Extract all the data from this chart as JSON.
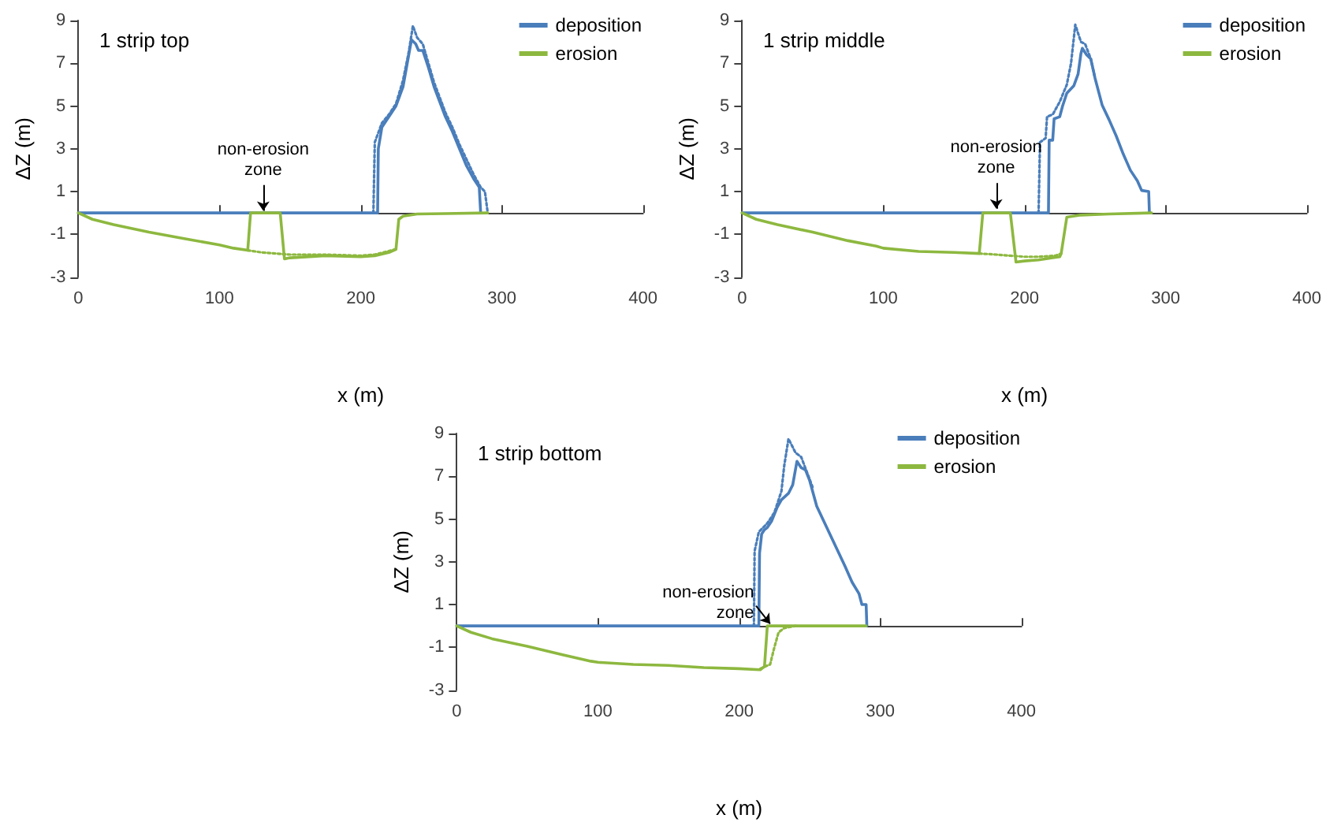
{
  "chart_data": [
    {
      "type": "line",
      "title": "1 strip top",
      "xlabel": "x (m)",
      "ylabel": "ΔZ (m)",
      "xlim": [
        0,
        400
      ],
      "xticks": [
        0,
        100,
        200,
        300,
        400
      ],
      "ylim": [
        -3,
        9
      ],
      "yticks": [
        -3,
        -1,
        1,
        3,
        5,
        7,
        9
      ],
      "grid": false,
      "legend": "top right",
      "marker": "none",
      "annotations": [
        {
          "text": "non-erosion zone",
          "x": 131,
          "y": 0.1
        }
      ],
      "series": [
        {
          "name": "deposition",
          "color": "#4a7ebb",
          "line_style": "solid",
          "x": [
            0,
            212,
            212.5,
            215,
            220,
            225,
            230,
            233,
            236,
            239,
            241,
            244,
            248,
            252,
            256,
            260,
            265,
            270,
            275,
            280,
            284,
            285
          ],
          "values": [
            0,
            0,
            3.0,
            4.0,
            4.5,
            5.0,
            5.9,
            7.0,
            8.1,
            7.9,
            7.6,
            7.6,
            6.8,
            5.9,
            5.2,
            4.5,
            3.8,
            3.0,
            2.2,
            1.6,
            1.2,
            0
          ]
        },
        {
          "color": "#4a7ebb",
          "line_style": "dotted",
          "x": [
            209,
            210,
            215,
            220,
            225,
            230,
            234,
            237,
            240,
            244,
            248,
            252,
            256,
            260,
            265,
            270,
            275,
            280,
            285,
            288,
            290
          ],
          "values": [
            0,
            3.3,
            4.2,
            4.6,
            5.1,
            6.2,
            7.5,
            8.75,
            8.2,
            7.9,
            7.0,
            6.1,
            5.4,
            4.7,
            4.0,
            3.2,
            2.5,
            1.8,
            1.2,
            1.0,
            0
          ]
        },
        {
          "name": "erosion",
          "color": "#8db83f",
          "line_style": "solid",
          "x": [
            0,
            10,
            25,
            50,
            75,
            100,
            110,
            120,
            122,
            143,
            146,
            150,
            175,
            200,
            210,
            220,
            225,
            227,
            230,
            240,
            260,
            290
          ],
          "values": [
            0,
            -0.3,
            -0.55,
            -0.9,
            -1.2,
            -1.5,
            -1.65,
            -1.75,
            0,
            0,
            -2.15,
            -2.1,
            -2.0,
            -2.05,
            -2.0,
            -1.85,
            -1.7,
            -0.3,
            -0.15,
            -0.05,
            -0.03,
            0
          ]
        },
        {
          "color": "#8db83f",
          "line_style": "dotted",
          "x": [
            120,
            130,
            140,
            150,
            175,
            200,
            210,
            225
          ],
          "values": [
            -1.75,
            -1.85,
            -1.9,
            -1.95,
            -1.95,
            -2.0,
            -1.95,
            -1.7
          ]
        }
      ]
    },
    {
      "type": "line",
      "title": "1 strip middle",
      "xlabel": "x (m)",
      "ylabel": "ΔZ (m)",
      "xlim": [
        0,
        400
      ],
      "xticks": [
        0,
        100,
        200,
        300,
        400
      ],
      "ylim": [
        -3,
        9
      ],
      "yticks": [
        -3,
        -1,
        1,
        3,
        5,
        7,
        9
      ],
      "grid": false,
      "legend": "top right",
      "marker": "none",
      "annotations": [
        {
          "text": "non-erosion zone",
          "x": 180,
          "y": 0.2
        }
      ],
      "series": [
        {
          "name": "deposition",
          "color": "#4a7ebb",
          "line_style": "solid",
          "x": [
            0,
            217,
            217.5,
            220,
            221,
            225,
            227,
            230,
            235,
            238,
            240,
            241,
            244,
            247,
            250,
            255,
            260,
            265,
            270,
            275,
            280,
            283,
            288,
            288.5
          ],
          "values": [
            0,
            0,
            3.4,
            3.4,
            4.4,
            4.5,
            5.0,
            5.6,
            5.95,
            6.5,
            7.45,
            7.7,
            7.4,
            7.2,
            6.3,
            5.05,
            4.35,
            3.6,
            2.75,
            2.0,
            1.5,
            1.05,
            1.0,
            0
          ]
        },
        {
          "color": "#4a7ebb",
          "line_style": "dotted",
          "x": [
            210,
            211,
            215,
            216,
            220,
            225,
            230,
            233,
            236,
            240,
            243,
            247,
            250
          ],
          "values": [
            0,
            3.3,
            3.5,
            4.5,
            4.6,
            5.2,
            6.0,
            7.0,
            8.8,
            8.0,
            7.9,
            7.2,
            6.3
          ]
        },
        {
          "name": "erosion",
          "color": "#8db83f",
          "line_style": "solid",
          "x": [
            0,
            10,
            25,
            50,
            75,
            95,
            100,
            125,
            150,
            168,
            170.5,
            190,
            194,
            200,
            210,
            220,
            225,
            226,
            230,
            240,
            260,
            290
          ],
          "values": [
            0,
            -0.3,
            -0.55,
            -0.9,
            -1.3,
            -1.55,
            -1.65,
            -1.8,
            -1.85,
            -1.9,
            0,
            0,
            -2.3,
            -2.25,
            -2.2,
            -2.1,
            -2.05,
            -1.9,
            -0.2,
            -0.1,
            -0.05,
            0
          ]
        },
        {
          "color": "#8db83f",
          "line_style": "dotted",
          "x": [
            168,
            180,
            190,
            200,
            210,
            222,
            226
          ],
          "values": [
            -1.9,
            -1.95,
            -2.0,
            -2.05,
            -2.05,
            -2.0,
            -1.9
          ]
        }
      ]
    },
    {
      "type": "line",
      "title": "1 strip bottom",
      "xlabel": "x (m)",
      "ylabel": "ΔZ (m)",
      "xlim": [
        0,
        400
      ],
      "xticks": [
        0,
        100,
        200,
        300,
        400
      ],
      "ylim": [
        -3,
        9
      ],
      "yticks": [
        -3,
        -1,
        1,
        3,
        5,
        7,
        9
      ],
      "grid": false,
      "legend": "top right",
      "marker": "none",
      "annotations": [
        {
          "text": "non-erosion zone",
          "x": 222,
          "y": 0.1
        }
      ],
      "series": [
        {
          "name": "deposition",
          "color": "#4a7ebb",
          "line_style": "solid",
          "x": [
            0,
            214,
            214.5,
            216,
            218,
            220,
            223,
            227,
            230,
            235,
            238,
            241,
            244,
            247,
            250,
            255,
            260,
            265,
            270,
            275,
            280,
            285,
            287,
            290,
            290.5
          ],
          "values": [
            0,
            0,
            3.4,
            4.3,
            4.5,
            4.6,
            4.9,
            5.55,
            5.9,
            6.2,
            6.6,
            7.7,
            7.4,
            7.3,
            6.8,
            5.6,
            4.9,
            4.2,
            3.5,
            2.8,
            2.05,
            1.5,
            1.0,
            1.0,
            0
          ]
        },
        {
          "color": "#4a7ebb",
          "line_style": "dotted",
          "x": [
            210.5,
            211,
            214,
            220,
            225,
            230,
            232,
            235,
            240,
            244,
            248,
            252
          ],
          "values": [
            0,
            3.5,
            4.4,
            4.8,
            5.3,
            6.3,
            7.5,
            8.75,
            8.1,
            7.9,
            7.2,
            6.5
          ]
        },
        {
          "name": "erosion",
          "color": "#8db83f",
          "line_style": "solid",
          "x": [
            0,
            10,
            25,
            50,
            75,
            95,
            100,
            125,
            150,
            175,
            200,
            215,
            218,
            220,
            290
          ],
          "values": [
            0,
            -0.3,
            -0.6,
            -0.95,
            -1.35,
            -1.65,
            -1.7,
            -1.8,
            -1.85,
            -1.95,
            -2.0,
            -2.05,
            -1.9,
            0,
            0
          ]
        },
        {
          "color": "#8db83f",
          "line_style": "dotted",
          "x": [
            215,
            222,
            225,
            228,
            232,
            240
          ],
          "values": [
            -2.0,
            -1.8,
            -1.0,
            -0.3,
            -0.1,
            0
          ]
        }
      ]
    }
  ]
}
